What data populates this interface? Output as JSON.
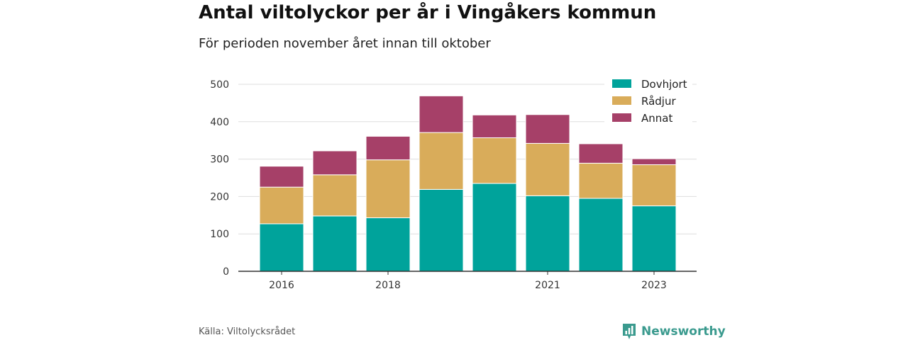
{
  "title": "Antal viltolyckor per år i Vingåkers kommun",
  "subtitle": "För perioden november året innan till oktober",
  "source": "Källa: Viltolycksrådet",
  "brand": "Newsworthy",
  "colors": {
    "Dovhjort": "#00a39b",
    "Rådjur": "#d9ac5a",
    "Annat": "#a64068",
    "grid": "#dddddd",
    "axis": "#333333",
    "brand": "#3a9a8e"
  },
  "icons": {
    "brand_logo": "newsworthy-logo-icon"
  },
  "chart_data": {
    "type": "bar",
    "stacked": true,
    "title": "Antal viltolyckor per år i Vingåkers kommun",
    "subtitle": "För perioden november året innan till oktober",
    "categories": [
      "2016",
      "2017",
      "2018",
      "2019",
      "2020",
      "2021",
      "2022",
      "2023"
    ],
    "x_tick_labels": [
      "2016",
      "",
      "2018",
      "",
      "",
      "2021",
      "",
      "2023"
    ],
    "series": [
      {
        "name": "Dovhjort",
        "values": [
          127,
          148,
          143,
          219,
          235,
          202,
          195,
          175
        ]
      },
      {
        "name": "Rådjur",
        "values": [
          98,
          110,
          155,
          152,
          122,
          140,
          94,
          110
        ]
      },
      {
        "name": "Annat",
        "values": [
          56,
          64,
          63,
          98,
          61,
          77,
          52,
          16
        ]
      }
    ],
    "ylim": [
      0,
      500
    ],
    "yticks": [
      0,
      100,
      200,
      300,
      400,
      500
    ],
    "xlabel": "",
    "ylabel": "",
    "grid": true,
    "legend_position": "top-right"
  }
}
